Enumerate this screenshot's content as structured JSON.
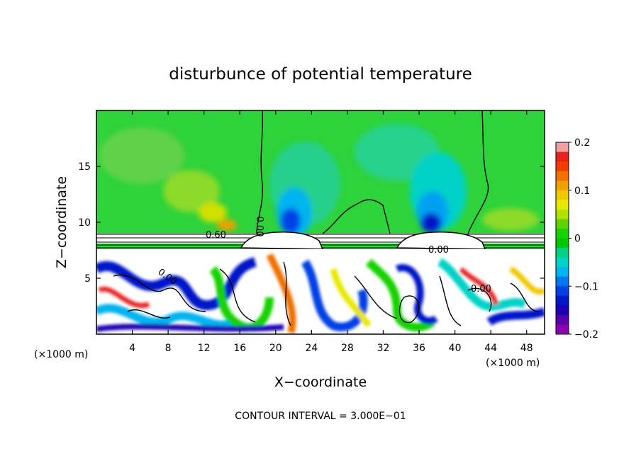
{
  "chart_data": {
    "type": "heatmap",
    "title": "disturbunce of potential temperature",
    "xlabel": "X−coordinate",
    "ylabel": "Z−coordinate",
    "x_unit_left": "(×1000 m)",
    "x_unit_right": "(×1000 m)",
    "xlim": [
      0,
      50
    ],
    "ylim": [
      0,
      20
    ],
    "x_ticks": [
      4,
      8,
      12,
      16,
      20,
      24,
      28,
      32,
      36,
      40,
      44,
      48
    ],
    "x_tick_labels": [
      "4",
      "8",
      "12",
      "16",
      "20",
      "24",
      "28",
      "32",
      "36",
      "40",
      "44",
      "48"
    ],
    "y_ticks": [
      5,
      10,
      15
    ],
    "y_tick_labels": [
      "5",
      "10",
      "15"
    ],
    "colorbar": {
      "range": [
        -0.2,
        0.2
      ],
      "ticks": [
        0.2,
        0.1,
        0,
        -0.1,
        -0.2
      ],
      "tick_labels": [
        "0.2",
        "0.1",
        "0",
        "−0.1",
        "−0.2"
      ],
      "colors": [
        "#f0a0a0",
        "#e82020",
        "#f03c00",
        "#f07000",
        "#f0a000",
        "#f0c800",
        "#e8e800",
        "#b4e000",
        "#60d200",
        "#18d200",
        "#00c800",
        "#00d282",
        "#00d2c8",
        "#00b4f0",
        "#0078f0",
        "#0040e6",
        "#0018c8",
        "#1e00b4",
        "#5a00aa",
        "#8c00b4"
      ]
    },
    "contour_labels": [
      "0.60",
      "0.00",
      "0.00",
      "0.00",
      "0.00"
    ],
    "contour_interval": "CONTOUR INTERVAL = 3.000E−01"
  }
}
